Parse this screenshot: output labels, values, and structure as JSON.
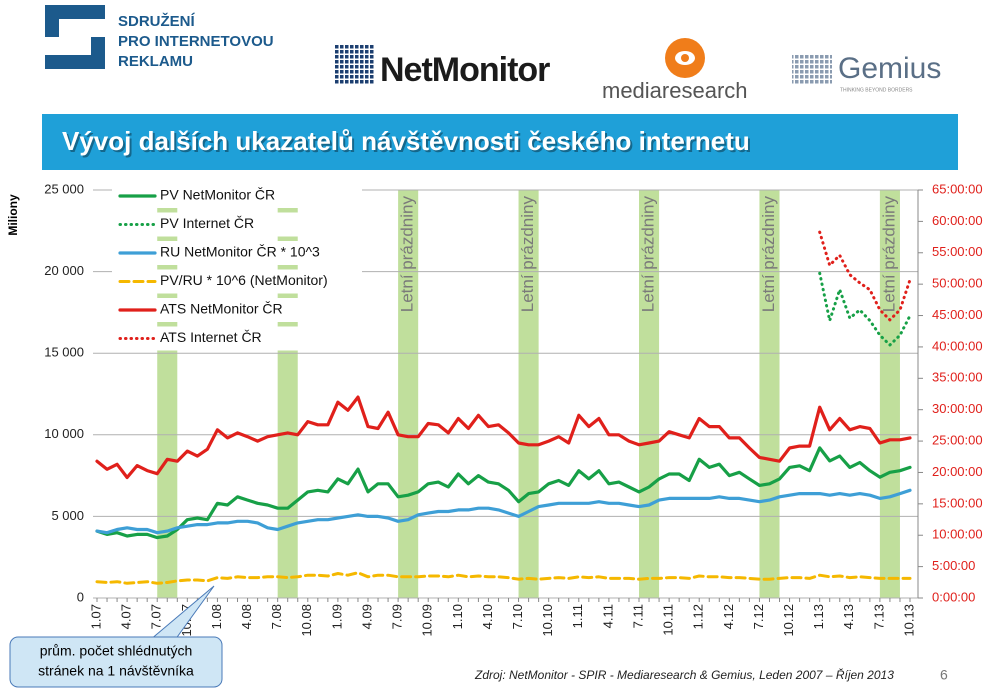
{
  "header": {
    "org": [
      "SDRUŽENÍ",
      "PRO INTERNETOVOU",
      "REKLAMU"
    ],
    "logo1": "NetMonitor",
    "logo2": "mediaresearch",
    "logo3": "Gemius",
    "logo3_tagline": "THINKING BEYOND BORDERS",
    "title": "Vývoj dalších ukazatelů návštěvnosti českého internetu"
  },
  "chart_data": {
    "type": "line",
    "y_label": "Miliony",
    "categories": [
      "1.07",
      null,
      null,
      "4.07",
      null,
      null,
      "7.07",
      null,
      null,
      "10.07",
      null,
      null,
      "1.08",
      null,
      null,
      "4.08",
      null,
      null,
      "7.08",
      null,
      null,
      "10.08",
      null,
      null,
      "1.09",
      null,
      null,
      "4.09",
      null,
      null,
      "7.09",
      null,
      null,
      "10.09",
      null,
      null,
      "1.10",
      null,
      null,
      "4.10",
      null,
      null,
      "7.10",
      null,
      null,
      "10.10",
      null,
      null,
      "1.11",
      null,
      null,
      "4.11",
      null,
      null,
      "7.11",
      null,
      null,
      "10.11",
      null,
      null,
      "1.12",
      null,
      null,
      "4.12",
      null,
      null,
      "7.12",
      null,
      null,
      "10.12",
      null,
      null,
      "1.13",
      null,
      null,
      "4.13",
      null,
      null,
      "7.13",
      null,
      null,
      "10.13"
    ],
    "ylim": [
      0,
      25000
    ],
    "yticks": [
      0,
      {
        "value": 5000,
        "label": "5 000"
      },
      {
        "value": 10000,
        "label": "10 000"
      },
      {
        "value": 15000,
        "label": "15 000"
      },
      {
        "value": 20000,
        "label": "20 000"
      },
      {
        "value": 25000,
        "label": "25 000"
      }
    ],
    "y2lim": [
      0,
      65
    ],
    "y2ticks": [
      {
        "value": 0,
        "label": "0:00:00"
      },
      {
        "value": 5,
        "label": "5:00:00"
      },
      {
        "value": 10,
        "label": "10:00:00"
      },
      {
        "value": 15,
        "label": "15:00:00"
      },
      {
        "value": 20,
        "label": "20:00:00"
      },
      {
        "value": 25,
        "label": "25:00:00"
      },
      {
        "value": 30,
        "label": "30:00:00"
      },
      {
        "value": 35,
        "label": "35:00:00"
      },
      {
        "value": 40,
        "label": "40:00:00"
      },
      {
        "value": 45,
        "label": "45:00:00"
      },
      {
        "value": 50,
        "label": "50:00:00"
      },
      {
        "value": 55,
        "label": "55:00:00"
      },
      {
        "value": 60,
        "label": "60:00:00"
      },
      {
        "value": 65,
        "label": "65:00:00"
      }
    ],
    "grid": true,
    "y2_color": "#e0201b",
    "annotations": [
      "Letní prázdniny",
      "Letní prázdniny",
      "Letní prázdniny",
      "Letní prázdniny",
      "Letní prázdniny"
    ],
    "series": [
      {
        "name": "PV NetMonitor ČR",
        "color": "#17a047",
        "dash": "solid",
        "values": [
          4100,
          3900,
          4000,
          3800,
          3900,
          3900,
          3700,
          3800,
          4200,
          4800,
          4900,
          4800,
          5800,
          5700,
          6200,
          6000,
          5800,
          5700,
          5500,
          5500,
          6000,
          6500,
          6600,
          6500,
          7300,
          7000,
          7900,
          6500,
          7000,
          7000,
          6200,
          6300,
          6500,
          7000,
          7100,
          6800,
          7600,
          7000,
          7500,
          7100,
          7000,
          6600,
          5900,
          6400,
          6500,
          7000,
          7200,
          6900,
          7800,
          7300,
          7800,
          7000,
          7100,
          6800,
          6500,
          6800,
          7300,
          7600,
          7600,
          7200,
          8500,
          8000,
          8200,
          7500,
          7700,
          7300,
          6900,
          7000,
          7300,
          8000,
          8100,
          7800,
          9200,
          8400,
          8700,
          8000,
          8300,
          7800,
          7400,
          7700,
          7800,
          8000
        ]
      },
      {
        "name": "PV Internet ČR",
        "color": "#17a047",
        "dash": "dotted",
        "values": [
          null,
          null,
          null,
          null,
          null,
          null,
          null,
          null,
          null,
          null,
          null,
          null,
          null,
          null,
          null,
          null,
          null,
          null,
          null,
          null,
          null,
          null,
          null,
          null,
          null,
          null,
          null,
          null,
          null,
          null,
          null,
          null,
          null,
          null,
          null,
          null,
          null,
          null,
          null,
          null,
          null,
          null,
          null,
          null,
          null,
          null,
          null,
          null,
          null,
          null,
          null,
          null,
          null,
          null,
          null,
          null,
          null,
          null,
          null,
          null,
          null,
          null,
          null,
          null,
          null,
          null,
          null,
          null,
          null,
          null,
          null,
          null,
          19900,
          17000,
          18900,
          17150,
          17650,
          17000,
          16100,
          15500,
          16100,
          17300
        ]
      },
      {
        "name": "RU NetMonitor ČR * 10^3",
        "color": "#3e9fd6",
        "dash": "solid",
        "values": [
          4100,
          4000,
          4200,
          4300,
          4200,
          4200,
          4000,
          4100,
          4300,
          4400,
          4500,
          4500,
          4600,
          4600,
          4700,
          4700,
          4600,
          4300,
          4200,
          4400,
          4600,
          4700,
          4800,
          4800,
          4900,
          5000,
          5100,
          5000,
          5000,
          4900,
          4700,
          4800,
          5100,
          5200,
          5300,
          5300,
          5400,
          5400,
          5500,
          5500,
          5400,
          5200,
          5000,
          5300,
          5600,
          5700,
          5800,
          5800,
          5800,
          5800,
          5900,
          5800,
          5800,
          5700,
          5600,
          5700,
          6000,
          6100,
          6100,
          6100,
          6100,
          6100,
          6200,
          6100,
          6100,
          6000,
          5900,
          6000,
          6200,
          6300,
          6400,
          6400,
          6400,
          6300,
          6400,
          6300,
          6400,
          6300,
          6100,
          6200,
          6400,
          6600
        ]
      },
      {
        "name": "PV/RU * 10^6 (NetMonitor)",
        "color": "#f5b800",
        "dash": "dashed",
        "values": [
          1000,
          950,
          1000,
          900,
          950,
          1000,
          900,
          950,
          1050,
          1100,
          1100,
          1050,
          1250,
          1200,
          1300,
          1250,
          1250,
          1300,
          1300,
          1250,
          1300,
          1400,
          1400,
          1350,
          1500,
          1400,
          1550,
          1300,
          1400,
          1400,
          1300,
          1300,
          1300,
          1350,
          1350,
          1300,
          1400,
          1300,
          1350,
          1300,
          1300,
          1250,
          1150,
          1200,
          1150,
          1200,
          1250,
          1200,
          1300,
          1250,
          1300,
          1200,
          1200,
          1200,
          1150,
          1200,
          1200,
          1250,
          1250,
          1200,
          1350,
          1300,
          1300,
          1250,
          1250,
          1200,
          1150,
          1150,
          1200,
          1250,
          1250,
          1200,
          1400,
          1300,
          1350,
          1250,
          1300,
          1250,
          1200,
          1200,
          1200,
          1200
        ]
      },
      {
        "name": "ATS NetMonitor ČR",
        "color": "#e0201b",
        "dash": "solid",
        "axis": "y2",
        "values": [
          21.8,
          20.5,
          21.3,
          19.2,
          21.1,
          20.3,
          19.8,
          22.1,
          21.8,
          23.4,
          22.6,
          23.7,
          26.8,
          25.5,
          26.3,
          25.7,
          25.0,
          25.7,
          26.0,
          26.3,
          26.0,
          28.1,
          27.6,
          27.6,
          31.2,
          29.9,
          32.0,
          27.3,
          27.0,
          29.6,
          26.0,
          25.7,
          25.7,
          27.8,
          27.6,
          26.3,
          28.6,
          27.0,
          29.1,
          27.3,
          27.6,
          26.3,
          24.7,
          24.4,
          24.4,
          25.0,
          25.7,
          24.7,
          29.1,
          27.3,
          28.6,
          26.0,
          26.0,
          25.0,
          24.4,
          24.7,
          25.0,
          26.5,
          26.0,
          25.5,
          28.6,
          27.3,
          27.3,
          25.5,
          25.5,
          23.9,
          22.4,
          22.1,
          21.8,
          23.9,
          24.2,
          24.2,
          30.4,
          26.8,
          28.6,
          26.8,
          27.3,
          27.0,
          24.7,
          25.2,
          25.2,
          25.5
        ]
      },
      {
        "name": "ATS Internet ČR",
        "color": "#e0201b",
        "dash": "dotted",
        "axis": "y2",
        "values": [
          null,
          null,
          null,
          null,
          null,
          null,
          null,
          null,
          null,
          null,
          null,
          null,
          null,
          null,
          null,
          null,
          null,
          null,
          null,
          null,
          null,
          null,
          null,
          null,
          null,
          null,
          null,
          null,
          null,
          null,
          null,
          null,
          null,
          null,
          null,
          null,
          null,
          null,
          null,
          null,
          null,
          null,
          null,
          null,
          null,
          null,
          null,
          null,
          null,
          null,
          null,
          null,
          null,
          null,
          null,
          null,
          null,
          null,
          null,
          null,
          null,
          null,
          null,
          null,
          null,
          null,
          null,
          null,
          null,
          null,
          null,
          null,
          58.3,
          53.0,
          54.6,
          51.5,
          50.2,
          49.1,
          45.9,
          44.3,
          45.9,
          50.7
        ]
      }
    ]
  },
  "callout": [
    "prům. počet shlédnutých",
    "stránek na 1 návštěvníka"
  ],
  "footer": {
    "source": "Zdroj: NetMonitor - SPIR - Mediaresearch & Gemius, Leden 2007 – Říjen 2013",
    "page": "6"
  }
}
